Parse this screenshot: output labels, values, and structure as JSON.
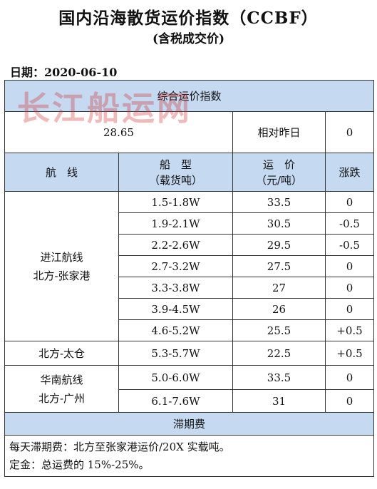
{
  "title": "国内沿海散货运价指数（CCBF）",
  "subtitle": "(含税成交价)",
  "date_label": "日期：2020-06-10",
  "watermark": "长江船运网",
  "index_section": {
    "header": "综合运价指数",
    "value": "28.65",
    "relative_label": "相对昨日",
    "relative_value": "0"
  },
  "columns": {
    "route": "航　线",
    "ship_type_l1": "船　型",
    "ship_type_l2": "（载货吨）",
    "freight_l1": "运　价",
    "freight_l2": "（元/吨）",
    "change": "涨跌"
  },
  "groups": [
    {
      "route_lines": [
        "进江航线",
        "北方-张家港"
      ],
      "rows": [
        {
          "ship_type": "1.5-1.8W",
          "freight": "33.5",
          "change": "0"
        },
        {
          "ship_type": "1.9-2.1W",
          "freight": "30.5",
          "change": "-0.5"
        },
        {
          "ship_type": "2.2-2.6W",
          "freight": "29.5",
          "change": "-0.5"
        },
        {
          "ship_type": "2.7-3.2W",
          "freight": "27.5",
          "change": "0"
        },
        {
          "ship_type": "3.3-3.8W",
          "freight": "27",
          "change": "0"
        },
        {
          "ship_type": "3.9-4.5W",
          "freight": "26",
          "change": "0"
        },
        {
          "ship_type": "4.6-5.2W",
          "freight": "25.5",
          "change": "+0.5"
        }
      ]
    },
    {
      "route_lines": [
        "北方-太仓"
      ],
      "rows": [
        {
          "ship_type": "5.3-5.7W",
          "freight": "22.5",
          "change": "+0.5"
        }
      ]
    },
    {
      "route_lines": [
        "华南航线",
        "北方-广州"
      ],
      "rows": [
        {
          "ship_type": "5.0-6.0W",
          "freight": "33.5",
          "change": "0"
        },
        {
          "ship_type": "6.1-7.6W",
          "freight": "31",
          "change": "0"
        }
      ]
    }
  ],
  "demurrage": {
    "header": "滞期费",
    "line1": "每天滞期费：北方至张家港运价/20X 实载吨。",
    "line2": "定金：总运费的 15%-25%。"
  },
  "colors": {
    "header_fill": "#c5d9f1",
    "watermark": "#cd2d2d"
  }
}
